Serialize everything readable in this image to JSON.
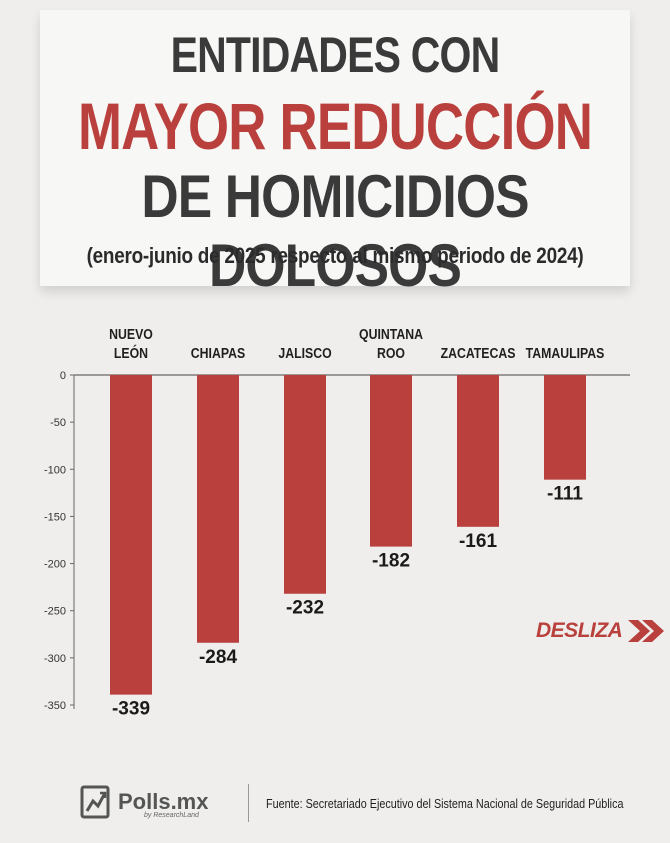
{
  "header": {
    "line1": "ENTIDADES CON",
    "line2": "MAYOR REDUCCIÓN",
    "line3": "DE HOMICIDIOS DOLOSOS",
    "subtitle": "(enero-junio de 2025 respecto al mismo periodo de 2024)"
  },
  "chart_data": {
    "type": "bar",
    "categories": [
      [
        "NUEVO",
        "LEÓN"
      ],
      [
        "CHIAPAS"
      ],
      [
        "JALISCO"
      ],
      [
        "QUINTANA",
        "ROO"
      ],
      [
        "ZACATECAS"
      ],
      [
        "TAMAULIPAS"
      ]
    ],
    "values": [
      -339,
      -284,
      -232,
      -182,
      -161,
      -111
    ],
    "value_labels": [
      "-339",
      "-284",
      "-232",
      "-182",
      "-161",
      "-111"
    ],
    "ylim": [
      -350,
      0
    ],
    "yticks": [
      "0",
      "-50",
      "-100",
      "-150",
      "-200",
      "-250",
      "-300",
      "-350"
    ],
    "bar_color": "#b9403c",
    "grid": false,
    "legend": "none"
  },
  "desliza": {
    "label": "DESLIZA"
  },
  "footer": {
    "logo": "Polls.mx",
    "logo_sub": "by ResearchLand",
    "source": "Fuente: Secretariado Ejecutivo del Sistema Nacional de Seguridad Pública"
  },
  "colors": {
    "accent": "#b9403c",
    "background": "#efeeec",
    "title_dark": "#3a3a3a"
  }
}
